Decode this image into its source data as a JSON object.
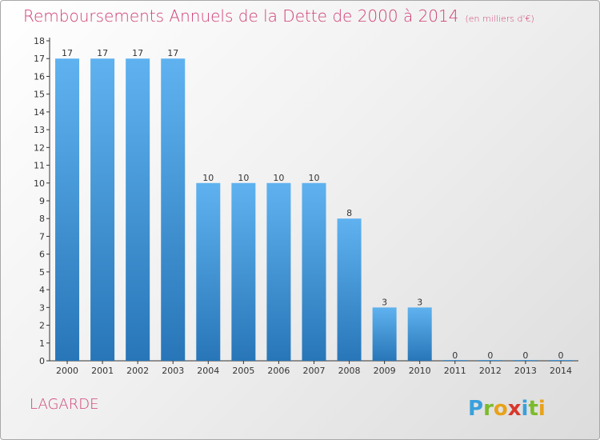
{
  "header": {
    "title": "Remboursements Annuels de la Dette de 2000 à 2014",
    "subtitle": "(en milliers d'€)"
  },
  "footer": {
    "commune": "LAGARDE",
    "brand": "Proxiti"
  },
  "colors": {
    "title": "#cf3f76",
    "bar_top": "#5fb2ef",
    "bar_bottom": "#2876b8",
    "axis": "#333333"
  },
  "chart_data": {
    "type": "bar",
    "title": "Remboursements Annuels de la Dette de 2000 à 2014",
    "xlabel": "",
    "ylabel": "",
    "categories": [
      "2000",
      "2001",
      "2002",
      "2003",
      "2004",
      "2005",
      "2006",
      "2007",
      "2008",
      "2009",
      "2010",
      "2011",
      "2012",
      "2013",
      "2014"
    ],
    "values": [
      17,
      17,
      17,
      17,
      10,
      10,
      10,
      10,
      8,
      3,
      3,
      0,
      0,
      0,
      0
    ],
    "ylim": [
      0,
      18
    ],
    "yticks": [
      0,
      1,
      2,
      3,
      4,
      5,
      6,
      7,
      8,
      9,
      10,
      11,
      12,
      13,
      14,
      15,
      16,
      17,
      18
    ],
    "grid": false,
    "legend": "none",
    "data_labels": true
  }
}
